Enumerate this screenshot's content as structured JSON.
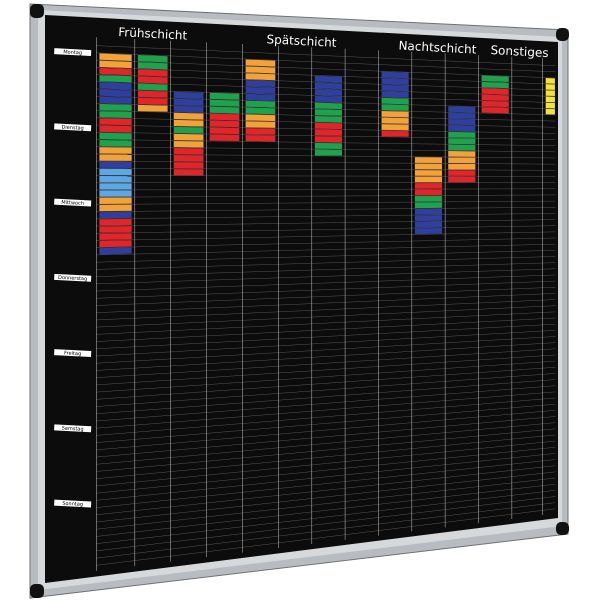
{
  "headers": [
    "Frühschicht",
    "Spätschicht",
    "Nachtschicht",
    "Sonstiges"
  ],
  "days": [
    "Montag",
    "Dienstag",
    "Mittwoch",
    "Donnerstag",
    "Freitag",
    "Samstag",
    "Sonntag"
  ]
}
